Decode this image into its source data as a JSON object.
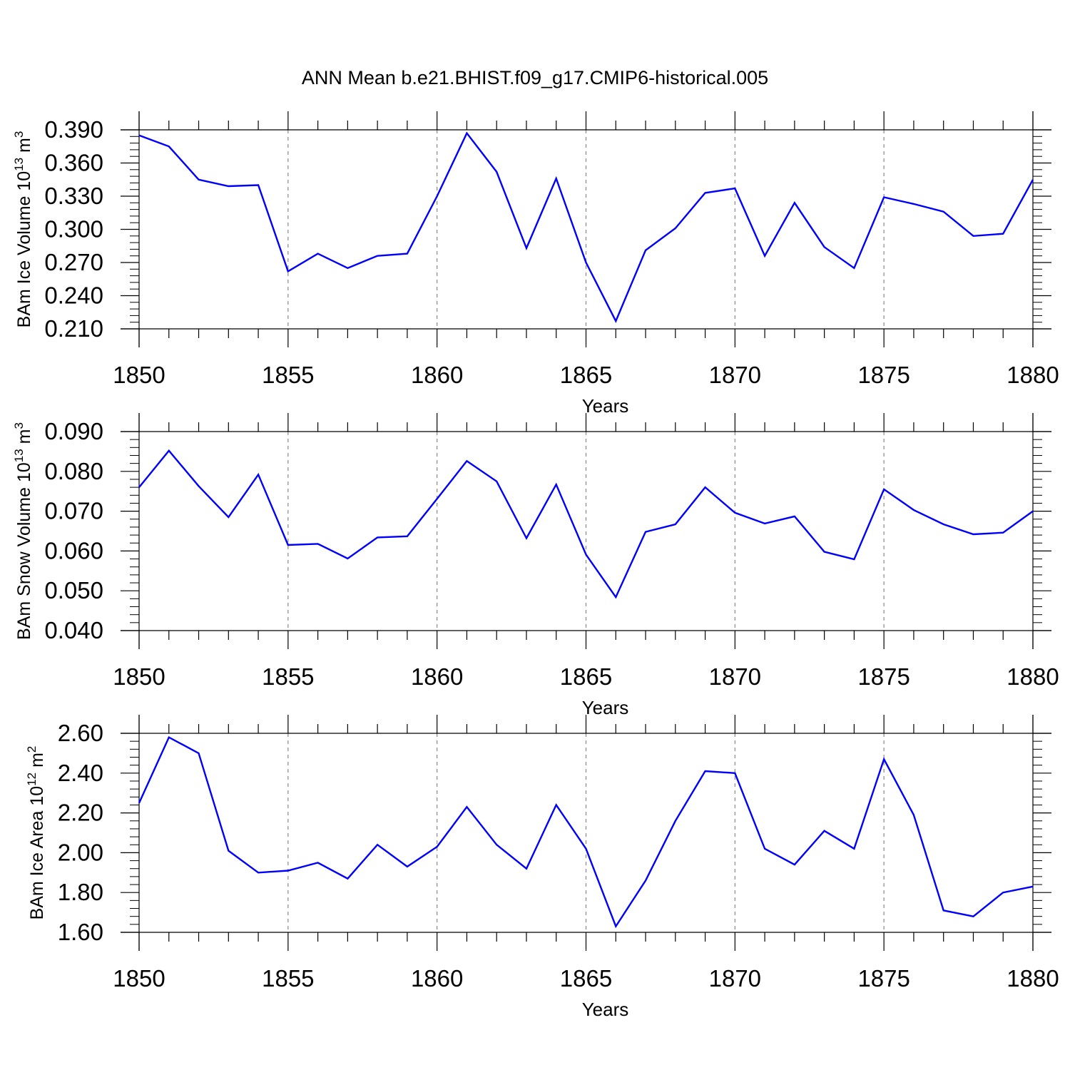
{
  "title": "ANN Mean b.e21.BHIST.f09_g17.CMIP6-historical.005",
  "line_color": "#0000ff",
  "grid_color": "#888888",
  "chart_data": [
    {
      "type": "line",
      "ylabel": {
        "text": "BAm Ice Volume 10",
        "exp": "13",
        "unit": " m",
        "unit_exp": "3"
      },
      "xlabel": "Years",
      "xlim": [
        1850,
        1880
      ],
      "ylim": [
        0.21,
        0.39
      ],
      "yticks": [
        0.21,
        0.24,
        0.27,
        0.3,
        0.33,
        0.36,
        0.39
      ],
      "ytick_labels": [
        "0.210",
        "0.240",
        "0.270",
        "0.300",
        "0.330",
        "0.360",
        "0.390"
      ],
      "xticks": [
        1850,
        1855,
        1860,
        1865,
        1870,
        1875,
        1880
      ],
      "xtick_labels": [
        "1850",
        "1855",
        "1860",
        "1865",
        "1870",
        "1875",
        "1880"
      ],
      "grid": "vertical dashed at major x ticks",
      "series": [
        {
          "x": [
            1850,
            1851,
            1852,
            1853,
            1854,
            1855,
            1856,
            1857,
            1858,
            1859,
            1860,
            1861,
            1862,
            1863,
            1864,
            1865,
            1866,
            1867,
            1868,
            1869,
            1870,
            1871,
            1872,
            1873,
            1874,
            1875,
            1876,
            1877,
            1878,
            1879,
            1880
          ],
          "values": [
            0.385,
            0.375,
            0.345,
            0.339,
            0.34,
            0.262,
            0.278,
            0.265,
            0.276,
            0.278,
            0.33,
            0.387,
            0.352,
            0.283,
            0.346,
            0.27,
            0.217,
            0.281,
            0.301,
            0.333,
            0.337,
            0.276,
            0.324,
            0.284,
            0.265,
            0.329,
            0.323,
            0.316,
            0.294,
            0.296,
            0.345
          ]
        }
      ]
    },
    {
      "type": "line",
      "ylabel": {
        "text": "BAm Snow Volume 10",
        "exp": "13",
        "unit": " m",
        "unit_exp": "3"
      },
      "xlabel": "Years",
      "xlim": [
        1850,
        1880
      ],
      "ylim": [
        0.04,
        0.09
      ],
      "yticks": [
        0.04,
        0.05,
        0.06,
        0.07,
        0.08,
        0.09
      ],
      "ytick_labels": [
        "0.040",
        "0.050",
        "0.060",
        "0.070",
        "0.080",
        "0.090"
      ],
      "xticks": [
        1850,
        1855,
        1860,
        1865,
        1870,
        1875,
        1880
      ],
      "xtick_labels": [
        "1850",
        "1855",
        "1860",
        "1865",
        "1870",
        "1875",
        "1880"
      ],
      "grid": "vertical dashed at major x ticks",
      "series": [
        {
          "x": [
            1850,
            1851,
            1852,
            1853,
            1854,
            1855,
            1856,
            1857,
            1858,
            1859,
            1860,
            1861,
            1862,
            1863,
            1864,
            1865,
            1866,
            1867,
            1868,
            1869,
            1870,
            1871,
            1872,
            1873,
            1874,
            1875,
            1876,
            1877,
            1878,
            1879,
            1880
          ],
          "values": [
            0.076,
            0.0852,
            0.0763,
            0.0685,
            0.0792,
            0.0615,
            0.0618,
            0.0581,
            0.0634,
            0.0637,
            0.0731,
            0.0826,
            0.0775,
            0.0632,
            0.0767,
            0.0591,
            0.0484,
            0.0648,
            0.0667,
            0.076,
            0.0696,
            0.0669,
            0.0687,
            0.0598,
            0.0579,
            0.0755,
            0.0703,
            0.0667,
            0.0642,
            0.0646,
            0.07
          ]
        }
      ]
    },
    {
      "type": "line",
      "ylabel": {
        "text": "BAm Ice Area 10",
        "exp": "12",
        "unit": " m",
        "unit_exp": "2"
      },
      "xlabel": "Years",
      "xlim": [
        1850,
        1880
      ],
      "ylim": [
        1.6,
        2.6
      ],
      "yticks": [
        1.6,
        1.8,
        2.0,
        2.2,
        2.4,
        2.6
      ],
      "ytick_labels": [
        "1.60",
        "1.80",
        "2.00",
        "2.20",
        "2.40",
        "2.60"
      ],
      "xticks": [
        1850,
        1855,
        1860,
        1865,
        1870,
        1875,
        1880
      ],
      "xtick_labels": [
        "1850",
        "1855",
        "1860",
        "1865",
        "1870",
        "1875",
        "1880"
      ],
      "grid": "vertical dashed at major x ticks",
      "series": [
        {
          "x": [
            1850,
            1851,
            1852,
            1853,
            1854,
            1855,
            1856,
            1857,
            1858,
            1859,
            1860,
            1861,
            1862,
            1863,
            1864,
            1865,
            1866,
            1867,
            1868,
            1869,
            1870,
            1871,
            1872,
            1873,
            1874,
            1875,
            1876,
            1877,
            1878,
            1879,
            1880
          ],
          "values": [
            2.25,
            2.58,
            2.5,
            2.01,
            1.9,
            1.91,
            1.95,
            1.87,
            2.04,
            1.93,
            2.03,
            2.23,
            2.04,
            1.92,
            2.24,
            2.02,
            1.63,
            1.86,
            2.16,
            2.41,
            2.4,
            2.02,
            1.94,
            2.11,
            2.02,
            2.47,
            2.19,
            1.71,
            1.68,
            1.8,
            1.83
          ]
        }
      ]
    }
  ]
}
